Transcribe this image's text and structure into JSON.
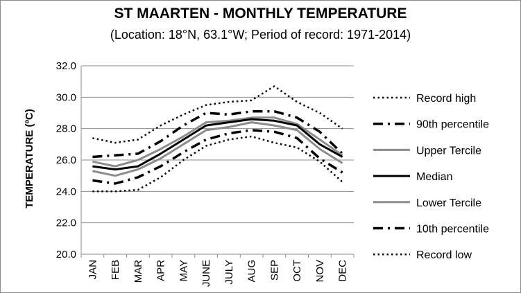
{
  "chart_data": {
    "type": "line",
    "title": "ST MAARTEN - MONTHLY TEMPERATURE",
    "subtitle": "(Location: 18°N, 63.1°W; Period of record: 1971-2014)",
    "ylabel": "TEMPERATURE (ºC)",
    "xlabel": "",
    "ylim": [
      20,
      32
    ],
    "yticks": [
      "20.0",
      "22.0",
      "24.0",
      "26.0",
      "28.0",
      "30.0",
      "32.0"
    ],
    "categories": [
      "JAN",
      "FEB",
      "MAR",
      "APR",
      "MAY",
      "JUNE",
      "JULY",
      "AUG",
      "SEP",
      "OCT",
      "NOV",
      "DEC"
    ],
    "grid": "horizontal",
    "legend_position": "right",
    "series": [
      {
        "name": "Record high",
        "style": "dotted",
        "color": "#000000",
        "values": [
          27.4,
          27.1,
          27.3,
          28.2,
          28.9,
          29.5,
          29.7,
          29.8,
          30.7,
          29.7,
          29.0,
          28.0
        ]
      },
      {
        "name": "90th percentile",
        "style": "dashdot",
        "color": "#000000",
        "values": [
          26.2,
          26.3,
          26.4,
          27.2,
          28.2,
          29.0,
          28.9,
          29.1,
          29.1,
          28.7,
          27.8,
          26.4
        ]
      },
      {
        "name": "Upper Tercile",
        "style": "solid",
        "color": "#8c8c8c",
        "values": [
          25.9,
          25.6,
          26.0,
          26.7,
          27.5,
          28.4,
          28.5,
          28.7,
          28.7,
          28.3,
          27.3,
          26.3
        ]
      },
      {
        "name": "Median",
        "style": "solid",
        "color": "#000000",
        "values": [
          25.6,
          25.4,
          25.6,
          26.4,
          27.3,
          28.2,
          28.4,
          28.6,
          28.5,
          28.2,
          27.0,
          26.2
        ]
      },
      {
        "name": "Lower Tercile",
        "style": "solid",
        "color": "#8c8c8c",
        "values": [
          25.3,
          25.0,
          25.4,
          26.1,
          27.0,
          27.9,
          28.1,
          28.4,
          28.2,
          27.9,
          26.7,
          25.8
        ]
      },
      {
        "name": "10th percentile",
        "style": "dashdot",
        "color": "#000000",
        "values": [
          24.7,
          24.5,
          24.9,
          25.6,
          26.5,
          27.3,
          27.7,
          27.9,
          27.8,
          27.4,
          26.1,
          25.2
        ]
      },
      {
        "name": "Record low",
        "style": "dotted",
        "color": "#000000",
        "values": [
          24.0,
          24.0,
          24.1,
          24.9,
          26.0,
          26.9,
          27.3,
          27.5,
          27.1,
          26.8,
          25.9,
          24.6
        ]
      }
    ]
  }
}
